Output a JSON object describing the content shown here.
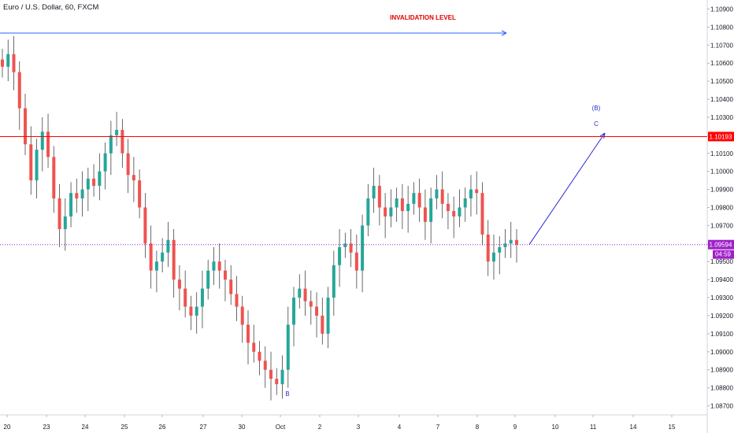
{
  "header": {
    "symbol_title": "Euro / U.S. Dollar, 60, FXCM"
  },
  "colors": {
    "up": "#26a69a",
    "down": "#ef5350",
    "wick": "#444444",
    "line_blue": "#2962ff",
    "line_red": "#ff0000",
    "line_purple": "#a020c8",
    "annotation_blue": "#2a2ad0",
    "annotation_red": "#e00000",
    "axis_text": "#131722"
  },
  "chart_data": {
    "type": "candlestick",
    "y_axis": {
      "min": 1.0865,
      "max": 1.0895,
      "range": [
        1.0865,
        1.0895
      ],
      "ticks": [
        "1.10900",
        "1.10800",
        "1.10700",
        "1.10600",
        "1.10500",
        "1.10400",
        "1.10300",
        "1.10200",
        "1.10100",
        "1.10000",
        "1.09900",
        "1.09800",
        "1.09700",
        "1.09600",
        "1.09500",
        "1.09400",
        "1.09300",
        "1.09200",
        "1.09100",
        "1.09000",
        "1.08900",
        "1.08800",
        "1.08700"
      ]
    },
    "x_axis": {
      "labels": [
        "20",
        "23",
        "24",
        "25",
        "26",
        "27",
        "30",
        "Oct",
        "2",
        "3",
        "4",
        "7",
        "8",
        "9",
        "10",
        "11",
        "14",
        "15"
      ]
    },
    "horizontal_levels": [
      {
        "name": "invalidation",
        "value": 1.10193,
        "label": "1.10193"
      },
      {
        "name": "current",
        "value": 1.09594,
        "label": "1.09594",
        "countdown": "04:59"
      }
    ],
    "annotations": [
      {
        "text": "INVALIDATION LEVEL"
      },
      {
        "text": "(B)"
      },
      {
        "text": "C"
      },
      {
        "text": "B"
      }
    ],
    "price_path": [
      1.1058,
      1.1065,
      1.1055,
      1.1035,
      1.1015,
      1.0995,
      1.1012,
      1.1022,
      1.1008,
      1.0985,
      1.0968,
      1.0975,
      1.0988,
      1.0985,
      1.099,
      1.0996,
      1.0992,
      1.1,
      1.101,
      1.102,
      1.1023,
      1.101,
      1.0998,
      1.0995,
      1.098,
      1.096,
      1.0945,
      1.095,
      1.0955,
      1.0962,
      1.094,
      1.0935,
      1.0925,
      1.092,
      1.0925,
      1.0935,
      1.0945,
      1.095,
      1.0945,
      1.094,
      1.0932,
      1.0925,
      1.0915,
      1.0905,
      1.09,
      1.0895,
      1.089,
      1.0885,
      1.0882,
      1.089,
      1.0915,
      1.093,
      1.0935,
      1.0928,
      1.0925,
      1.092,
      1.091,
      1.093,
      1.0948,
      1.0958,
      1.096,
      1.0955,
      1.0945,
      1.097,
      1.0985,
      1.0992,
      1.098,
      1.0975,
      1.098,
      1.0985,
      1.0978,
      1.0982,
      1.0988,
      1.098,
      1.0972,
      1.0985,
      1.099,
      1.0982,
      1.0978,
      1.0975,
      1.098,
      1.0985,
      1.099,
      1.0988,
      1.0965,
      1.095,
      1.0955,
      1.0958,
      1.096,
      1.0962,
      1.09594
    ]
  }
}
